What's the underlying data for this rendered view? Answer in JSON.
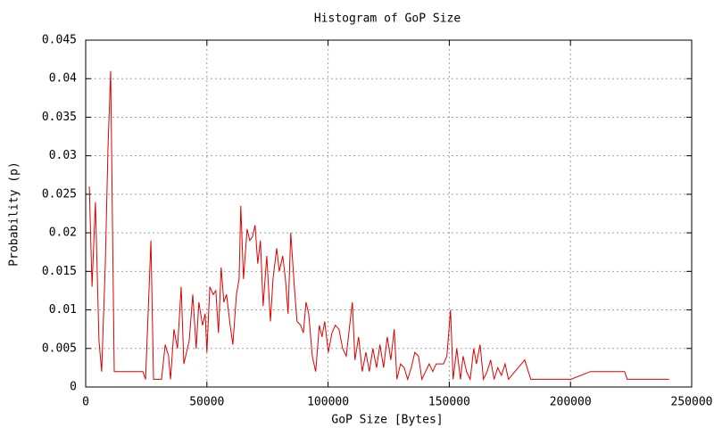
{
  "chart_data": {
    "type": "line",
    "title": "Histogram of GoP Size",
    "x_label": "GoP Size [Bytes]",
    "y_label": "Probability (p)",
    "xlim": [
      0,
      250000
    ],
    "ylim": [
      0,
      0.045
    ],
    "xticks": [
      0,
      50000,
      100000,
      150000,
      200000,
      250000
    ],
    "yticks": [
      0,
      0.005,
      0.01,
      0.015,
      0.02,
      0.025,
      0.03,
      0.035,
      0.04,
      0.045
    ],
    "grid": true,
    "series": [
      {
        "color": "#e00000",
        "x": [
          1500,
          2600,
          4000,
          5500,
          6600,
          8100,
          9200,
          10300,
          11800,
          23600,
          24700,
          26900,
          28000,
          31300,
          32800,
          34200,
          35000,
          36400,
          37900,
          39400,
          40500,
          42700,
          44200,
          45600,
          46700,
          48200,
          49300,
          50000,
          51200,
          52600,
          53700,
          54800,
          55900,
          57000,
          58100,
          59600,
          60700,
          62200,
          63300,
          64000,
          65100,
          66600,
          67700,
          68800,
          69900,
          71000,
          72100,
          73200,
          74700,
          76200,
          77300,
          78800,
          79900,
          81300,
          82400,
          83500,
          84600,
          86100,
          87200,
          88700,
          89800,
          90900,
          92000,
          93500,
          94900,
          96400,
          97500,
          98600,
          100100,
          101600,
          103000,
          104500,
          106000,
          107500,
          108900,
          110000,
          111100,
          112600,
          114100,
          115600,
          117000,
          118500,
          120000,
          121400,
          122900,
          124400,
          125900,
          127300,
          128400,
          129900,
          131400,
          132800,
          134300,
          135800,
          137300,
          138700,
          140200,
          141700,
          143200,
          144600,
          147600,
          149000,
          150500,
          151600,
          153100,
          154600,
          155700,
          157100,
          158600,
          160100,
          161200,
          162700,
          164100,
          165600,
          167100,
          168500,
          170000,
          171500,
          173000,
          174400,
          181100,
          183600,
          200200,
          208300,
          222300,
          223400,
          240700
        ],
        "values": [
          0.026,
          0.013,
          0.024,
          0.006,
          0.002,
          0.016,
          0.031,
          0.041,
          0.002,
          0.002,
          0.001,
          0.019,
          0.001,
          0.001,
          0.0055,
          0.004,
          0.001,
          0.0075,
          0.005,
          0.013,
          0.003,
          0.006,
          0.012,
          0.005,
          0.011,
          0.008,
          0.0095,
          0.0045,
          0.013,
          0.012,
          0.0125,
          0.007,
          0.0155,
          0.011,
          0.012,
          0.008,
          0.0055,
          0.012,
          0.014,
          0.0235,
          0.014,
          0.0205,
          0.019,
          0.0195,
          0.021,
          0.016,
          0.019,
          0.0105,
          0.017,
          0.0085,
          0.014,
          0.018,
          0.015,
          0.017,
          0.014,
          0.0095,
          0.02,
          0.013,
          0.0085,
          0.008,
          0.007,
          0.011,
          0.0095,
          0.004,
          0.002,
          0.008,
          0.0065,
          0.0085,
          0.0045,
          0.007,
          0.008,
          0.0075,
          0.005,
          0.004,
          0.008,
          0.011,
          0.0035,
          0.0065,
          0.002,
          0.0045,
          0.002,
          0.005,
          0.0025,
          0.0055,
          0.0025,
          0.0065,
          0.0035,
          0.0075,
          0.001,
          0.003,
          0.0025,
          0.001,
          0.0025,
          0.0045,
          0.004,
          0.001,
          0.002,
          0.003,
          0.002,
          0.003,
          0.003,
          0.004,
          0.01,
          0.001,
          0.005,
          0.001,
          0.004,
          0.002,
          0.001,
          0.005,
          0.003,
          0.0055,
          0.001,
          0.002,
          0.0035,
          0.001,
          0.0025,
          0.0015,
          0.003,
          0.001,
          0.0035,
          0.001,
          0.001,
          0.002,
          0.002,
          0.001,
          0.001
        ]
      }
    ]
  }
}
